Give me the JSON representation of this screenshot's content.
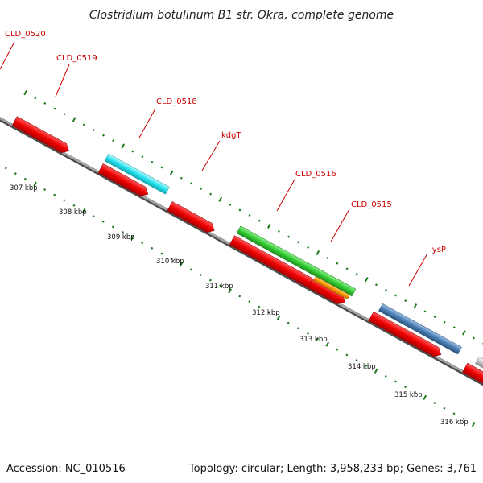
{
  "title": "Clostridium botulinum B1 str. Okra, complete genome",
  "accession": "Accession: NC_010516",
  "topology": "Topology: circular; Length: 3,958,233 bp; Genes: 3,761",
  "gene_labels": [
    "CLD_0520",
    "CLD_0519",
    "CLD_0518",
    "kdgT",
    "CLD_0516",
    "CLD_0515",
    "lysP"
  ],
  "kbp_labels": [
    "307 kbp",
    "308 kbp",
    "309 kbp",
    "310 kbp",
    "311 kbp",
    "312 kbp",
    "313 kbp",
    "314 kbp",
    "315 kbp",
    "316 kbp"
  ],
  "colors": {
    "backbone": "#808080",
    "cds_strand": "#ee0000",
    "gene_cyan": "#22e3ef",
    "gene_green": "#33cc33",
    "gene_orange": "#ff9900",
    "gene_blue": "#4a7fb5",
    "gene_grey": "#c8c8c8",
    "label_red": "#cc0000",
    "tick_green": "#1a7a1a"
  }
}
